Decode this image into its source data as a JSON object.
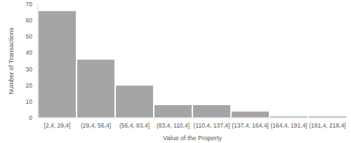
{
  "chart_data": {
    "type": "bar",
    "x_label": "Value of the Property",
    "y_label": "Number of Transactions",
    "categories": [
      "[2,4, 29,4]",
      "(29,4, 56,4]",
      "(56,4, 83,4]",
      "(83,4, 110,4]",
      "(110,4, 137,4]",
      "(137,4, 164,4]",
      "(164,4, 191,4]",
      "(191,4, 218,4]"
    ],
    "values": [
      66,
      36,
      20,
      8,
      8,
      4,
      1,
      1
    ],
    "color": "#a5a5a5",
    "ylim": [
      0,
      70
    ],
    "yticks": [
      0,
      10,
      20,
      30,
      40,
      50,
      60,
      70
    ],
    "grid": false
  }
}
